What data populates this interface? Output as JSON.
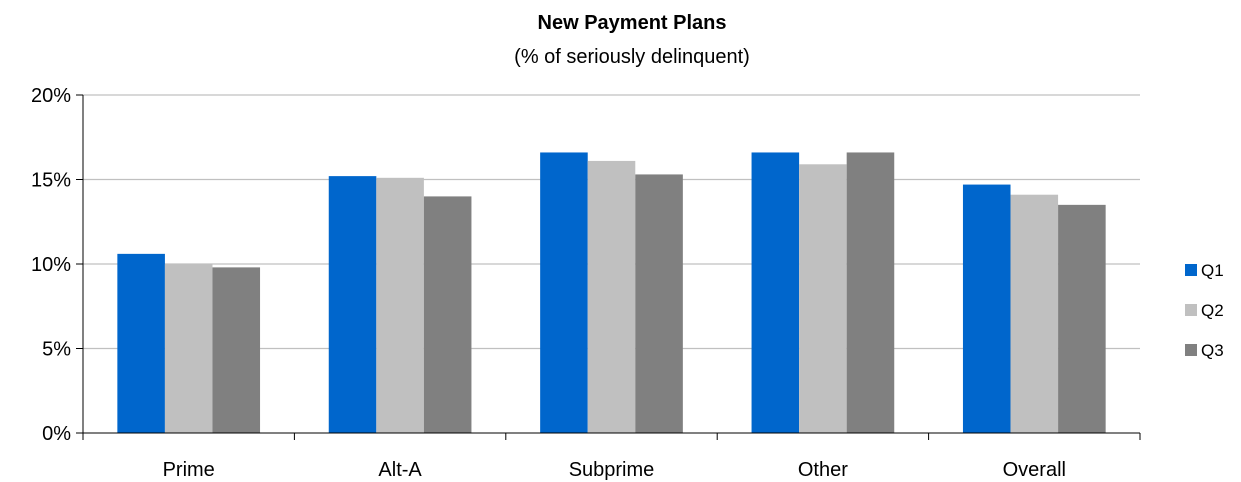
{
  "chart_data": {
    "type": "bar",
    "title": "New Payment Plans",
    "subtitle": "(% of seriously delinquent)",
    "categories": [
      "Prime",
      "Alt-A",
      "Subprime",
      "Other",
      "Overall"
    ],
    "series": [
      {
        "name": "Q1",
        "color": "#0066CC",
        "values": [
          10.6,
          15.2,
          16.6,
          16.6,
          14.7
        ]
      },
      {
        "name": "Q2",
        "color": "#C0C0C0",
        "values": [
          10.0,
          15.1,
          16.1,
          15.9,
          14.1
        ]
      },
      {
        "name": "Q3",
        "color": "#808080",
        "values": [
          9.8,
          14.0,
          15.3,
          16.6,
          13.5
        ]
      }
    ],
    "ylim": [
      0,
      20
    ],
    "yticks": [
      0,
      5,
      10,
      15,
      20
    ],
    "ytick_labels": [
      "0%",
      "5%",
      "10%",
      "15%",
      "20%"
    ],
    "grid": true,
    "legend_position": "right"
  }
}
